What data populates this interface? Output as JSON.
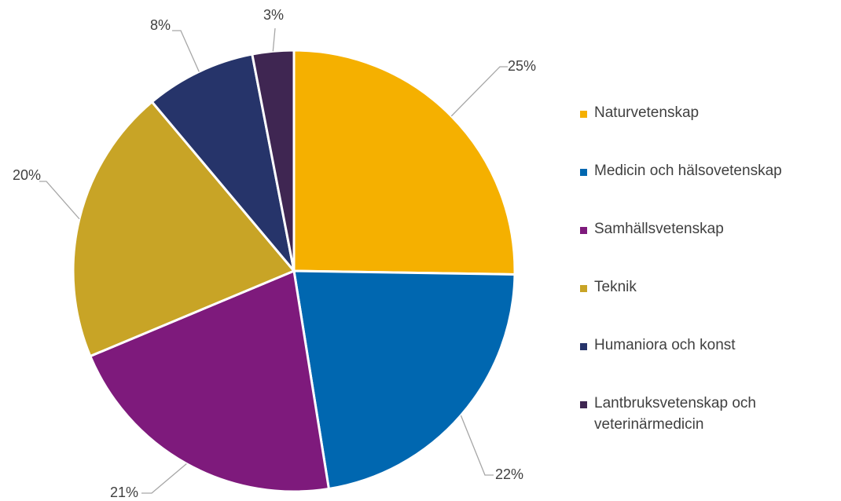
{
  "chart_data": {
    "type": "pie",
    "categories": [
      "Naturvetenskap",
      "Medicin och hälsovetenskap",
      "Samhällsvetenskap",
      "Teknik",
      "Humaniora och konst",
      "Lantbruksvetenskap och veterinärmedicin"
    ],
    "values": [
      25,
      22,
      21,
      20,
      8,
      3
    ],
    "labels": [
      "25%",
      "22%",
      "21%",
      "20%",
      "8%",
      "3%"
    ],
    "colors": [
      "#F5B000",
      "#0067B0",
      "#7E1A7C",
      "#C8A426",
      "#26346A",
      "#3F2652"
    ],
    "title": "",
    "legend_position": "right"
  }
}
